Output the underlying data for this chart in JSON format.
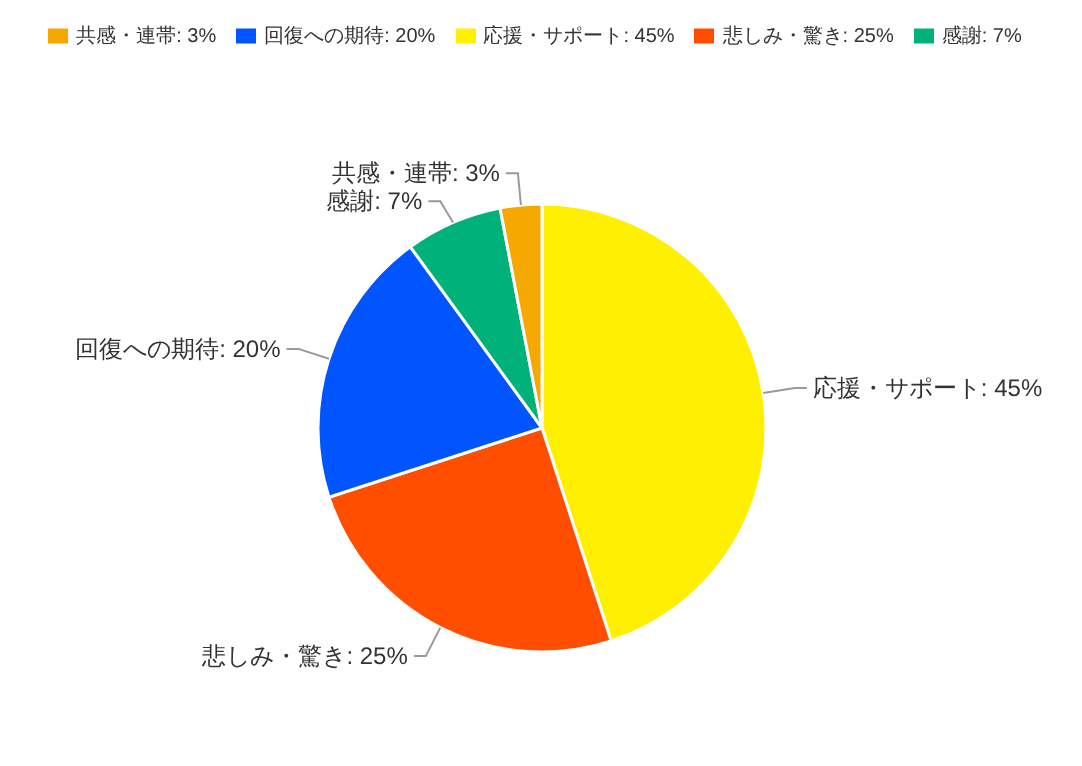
{
  "chart_data": {
    "type": "pie",
    "categories": [
      "応援・サポート: 45%",
      "悲しみ・驚き: 25%",
      "回復への期待: 20%",
      "感謝: 7%",
      "共感・連帯: 3%"
    ],
    "values": [
      45,
      25,
      20,
      7,
      3
    ],
    "colors": [
      "#ffef00",
      "#ff4e00",
      "#0055ff",
      "#00b27a",
      "#f5a800"
    ],
    "legend": "top"
  }
}
